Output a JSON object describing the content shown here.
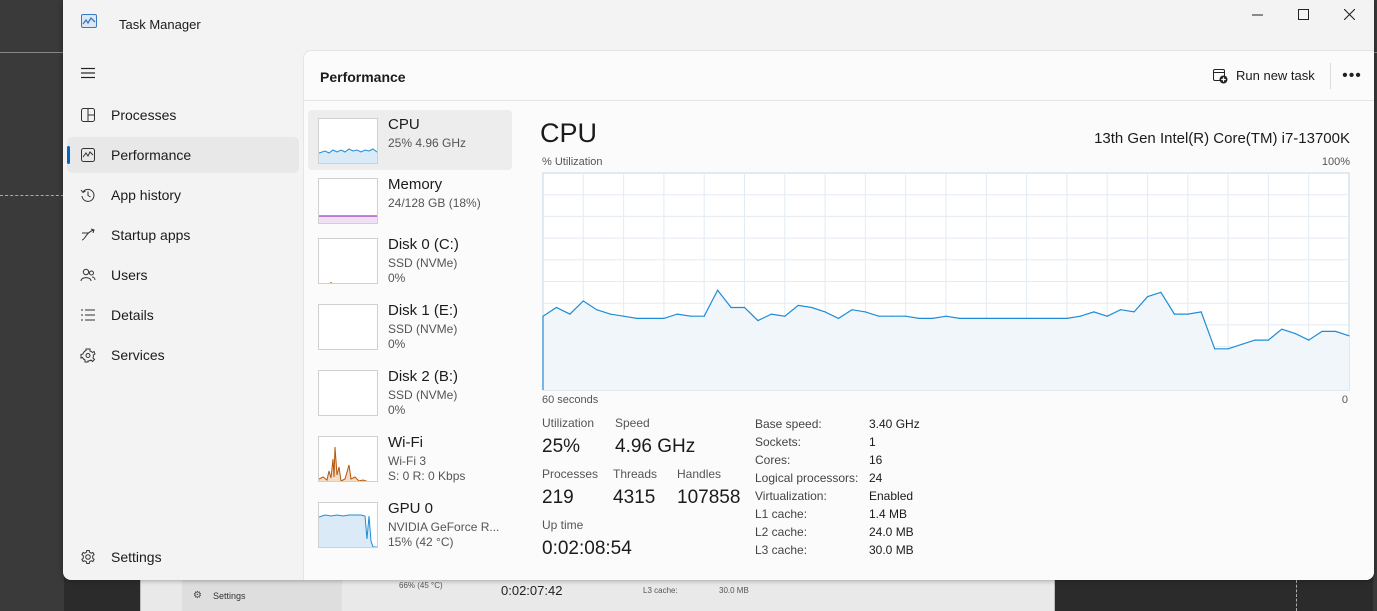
{
  "window": {
    "title": "Task Manager"
  },
  "sidebar": {
    "items": [
      {
        "label": "Processes",
        "icon": "processes-icon"
      },
      {
        "label": "Performance",
        "icon": "performance-icon",
        "active": true
      },
      {
        "label": "App history",
        "icon": "history-icon"
      },
      {
        "label": "Startup apps",
        "icon": "startup-icon"
      },
      {
        "label": "Users",
        "icon": "users-icon"
      },
      {
        "label": "Details",
        "icon": "details-icon"
      },
      {
        "label": "Services",
        "icon": "services-icon"
      }
    ],
    "settings_label": "Settings"
  },
  "header": {
    "title": "Performance",
    "run_task_label": "Run new task"
  },
  "devices": [
    {
      "name": "CPU",
      "sub1": "25%  4.96 GHz",
      "sub2": "",
      "color": "#1f8dd6"
    },
    {
      "name": "Memory",
      "sub1": "24/128 GB (18%)",
      "sub2": "",
      "color": "#8b12ae"
    },
    {
      "name": "Disk 0 (C:)",
      "sub1": "SSD (NVMe)",
      "sub2": "0%",
      "color": "#c07b00"
    },
    {
      "name": "Disk 1 (E:)",
      "sub1": "SSD (NVMe)",
      "sub2": "0%",
      "color": "#4da60c"
    },
    {
      "name": "Disk 2 (B:)",
      "sub1": "SSD (NVMe)",
      "sub2": "0%",
      "color": "#4da60c"
    },
    {
      "name": "Wi-Fi",
      "sub1": "Wi-Fi 3",
      "sub2": "S: 0  R: 0 Kbps",
      "color": "#b5570a"
    },
    {
      "name": "GPU 0",
      "sub1": "NVIDIA GeForce R...",
      "sub2": "15%  (42 °C)",
      "color": "#1f8dd6"
    }
  ],
  "detail": {
    "title": "CPU",
    "model": "13th Gen Intel(R) Core(TM) i7-13700K",
    "util_label": "% Utilization",
    "max_label": "100%",
    "time_label": "60 seconds",
    "zero_label": "0",
    "stats": {
      "utilization_label": "Utilization",
      "utilization": "25%",
      "speed_label": "Speed",
      "speed": "4.96 GHz",
      "processes_label": "Processes",
      "processes": "219",
      "threads_label": "Threads",
      "threads": "4315",
      "handles_label": "Handles",
      "handles": "107858",
      "uptime_label": "Up time",
      "uptime": "0:02:08:54"
    },
    "specs": [
      {
        "k": "Base speed:",
        "v": "3.40 GHz"
      },
      {
        "k": "Sockets:",
        "v": "1"
      },
      {
        "k": "Cores:",
        "v": "16"
      },
      {
        "k": "Logical processors:",
        "v": "24"
      },
      {
        "k": "Virtualization:",
        "v": "Enabled"
      },
      {
        "k": "L1 cache:",
        "v": "1.4 MB"
      },
      {
        "k": "L2 cache:",
        "v": "24.0 MB"
      },
      {
        "k": "L3 cache:",
        "v": "30.0 MB"
      }
    ]
  },
  "chart_data": {
    "type": "area",
    "ylabel": "% Utilization",
    "ylim": [
      0,
      100
    ],
    "x": [
      60,
      59,
      58,
      57,
      56,
      55,
      54,
      53,
      52,
      51,
      50,
      49,
      48,
      47,
      46,
      45,
      44,
      43,
      42,
      41,
      40,
      39,
      38,
      37,
      36,
      35,
      34,
      33,
      32,
      31,
      30,
      29,
      28,
      27,
      26,
      25,
      24,
      23,
      22,
      21,
      20,
      19,
      18,
      17,
      16,
      15,
      14,
      13,
      12,
      11,
      10,
      9,
      8,
      7,
      6,
      5,
      4,
      3,
      2,
      1,
      0
    ],
    "xlabel": "60 seconds",
    "series": [
      {
        "values": [
          34,
          38,
          35,
          41,
          37,
          35,
          34,
          33,
          33,
          33,
          35,
          34,
          34,
          46,
          38,
          38,
          32,
          35,
          34,
          39,
          38,
          36,
          33,
          37,
          36,
          34,
          34,
          34,
          33,
          33,
          34,
          33,
          33,
          33,
          33,
          33,
          33,
          33,
          33,
          33,
          34,
          36,
          34,
          37,
          36,
          43,
          45,
          35,
          35,
          36,
          19,
          19,
          21,
          23,
          23,
          28,
          26,
          23,
          27,
          27,
          25
        ]
      }
    ]
  }
}
